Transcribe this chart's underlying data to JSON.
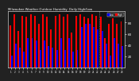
{
  "title": "Milwaukee Weather Outdoor Humidity",
  "subtitle": "Daily High/Low",
  "background_color": "#111111",
  "plot_background": "#111111",
  "fig_background": "#222222",
  "legend_high_color": "#ff0000",
  "legend_low_color": "#0000ff",
  "legend_high_label": "High",
  "legend_low_label": "Low",
  "bar_width": 0.38,
  "ylim": [
    0,
    100
  ],
  "y_ticks": [
    20,
    40,
    60,
    80
  ],
  "dashed_line_x": 21.5,
  "days": [
    1,
    2,
    3,
    4,
    5,
    6,
    7,
    8,
    9,
    10,
    11,
    12,
    13,
    14,
    15,
    16,
    17,
    18,
    19,
    20,
    21,
    22,
    23,
    24,
    25,
    26,
    27,
    28
  ],
  "high_values": [
    75,
    95,
    65,
    92,
    90,
    95,
    92,
    78,
    95,
    90,
    68,
    92,
    95,
    90,
    95,
    62,
    92,
    95,
    90,
    88,
    95,
    92,
    90,
    52,
    78,
    88,
    78,
    82
  ],
  "low_values": [
    22,
    42,
    35,
    28,
    52,
    52,
    48,
    32,
    48,
    38,
    35,
    32,
    52,
    32,
    52,
    28,
    32,
    72,
    78,
    78,
    72,
    68,
    65,
    42,
    22,
    52,
    42,
    38
  ]
}
